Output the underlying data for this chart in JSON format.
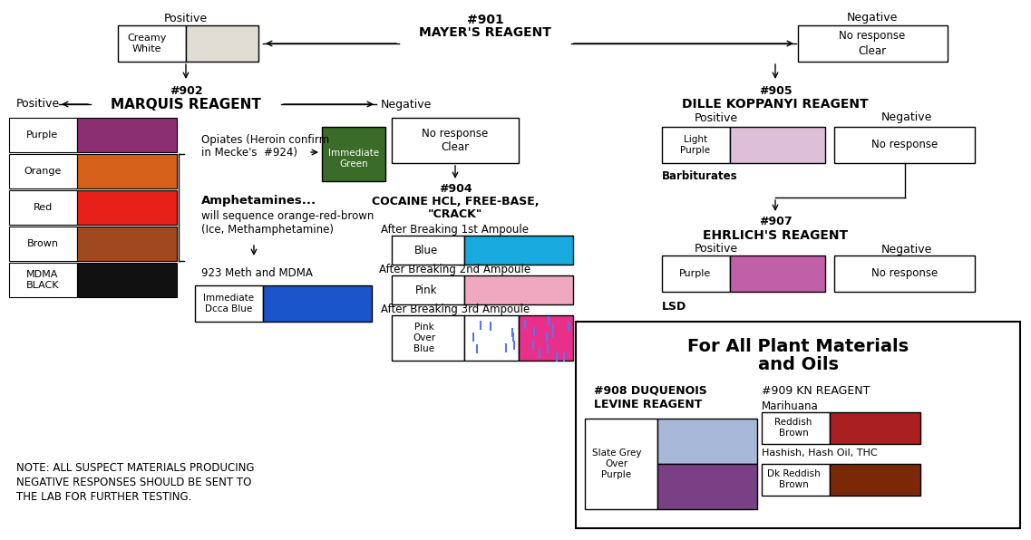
{
  "bg_color": "#ffffff",
  "mayers": {
    "number": "#901",
    "name": "MAYER'S REAGENT",
    "pos_color": "#e0ddd4",
    "neg_text": "No response\nClear"
  },
  "marquis": {
    "number": "#902",
    "name": "MARQUIS REAGENT",
    "colors": [
      {
        "name": "Purple",
        "color": "#8B2F72"
      },
      {
        "name": "Orange",
        "color": "#D4601A"
      },
      {
        "name": "Red",
        "color": "#E8201A"
      },
      {
        "name": "Brown",
        "color": "#A04820"
      },
      {
        "name": "MDMA\nBLACK",
        "color": "#111111"
      }
    ],
    "immediate_green": "#3A6B28",
    "dcca_blue": "#1A55CC"
  },
  "cocaine": {
    "number": "#904",
    "amp1_color": "#18AADE",
    "amp2_color": "#F0A8C0",
    "amp3_color": "#E8308A",
    "amp3_dot_color": "#5577EE"
  },
  "dille": {
    "number": "#905",
    "name": "DILLE KOPPANYI REAGENT",
    "pos_color": "#DDC0D8",
    "pos_name": "Light\nPurple",
    "label": "Barbiturates"
  },
  "ehrlich": {
    "number": "#907",
    "name": "EHRLICH'S REAGENT",
    "pos_color": "#C060A8",
    "pos_name": "Purple",
    "label": "LSD"
  },
  "plant": {
    "title1": "For All Plant Materials",
    "title2": "and Oils",
    "duq_num": "#908 DUQUENOIS",
    "duq_name": "LEVINE REAGENT",
    "kn_num": "#909 KN REAGENT",
    "slate_color": "#A8B8D8",
    "purple_color": "#7A4085",
    "marihuana_label": "Marihuana",
    "reddish_brown_name": "Reddish\nBrown",
    "reddish_brown_color": "#AA2020",
    "hashish_label": "Hashish, Hash Oil, THC",
    "dk_reddish_name": "Dk Reddish\nBrown",
    "dk_reddish_color": "#7A2808"
  },
  "note1": "NOTE: ALL SUSPECT MATERIALS PRODUCING",
  "note2": "NEGATIVE RESPONSES SHOULD BE SENT TO",
  "note3": "THE LAB FOR FURTHER TESTING."
}
